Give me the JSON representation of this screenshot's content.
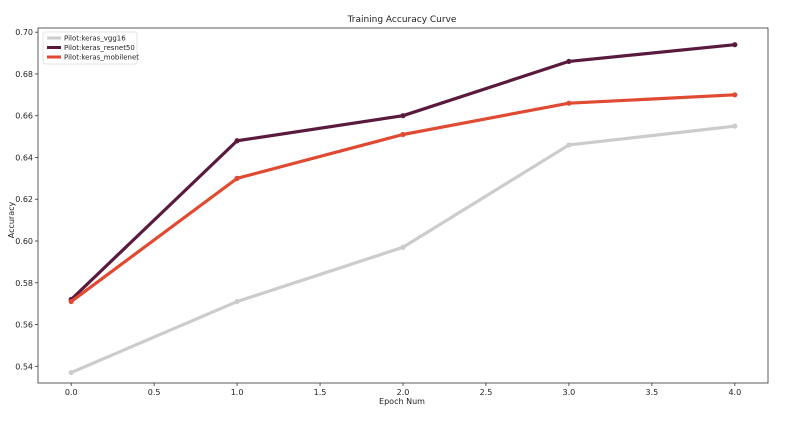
{
  "chart_data": {
    "type": "line",
    "title": "Training Accuracy Curve",
    "xlabel": "Epoch Num",
    "ylabel": "Accuracy",
    "x": [
      0,
      1,
      2,
      3,
      4
    ],
    "xlim": [
      -0.2,
      4.2
    ],
    "ylim": [
      0.532,
      0.702
    ],
    "xticks": [
      "0.0",
      "0.5",
      "1.0",
      "1.5",
      "2.0",
      "2.5",
      "3.0",
      "3.5",
      "4.0"
    ],
    "yticks": [
      "0.54",
      "0.56",
      "0.58",
      "0.60",
      "0.62",
      "0.64",
      "0.66",
      "0.68",
      "0.70"
    ],
    "grid": false,
    "legend_position": "top-left",
    "series": [
      {
        "name": "Pilot:keras_vgg16",
        "color": "#cccccc",
        "values": [
          0.537,
          0.571,
          0.597,
          0.646,
          0.655
        ]
      },
      {
        "name": "Pilot:keras_resnet50",
        "color": "#5a1a3d",
        "values": [
          0.572,
          0.648,
          0.66,
          0.686,
          0.694
        ]
      },
      {
        "name": "Pilot:keras_mobilenet",
        "color": "#e04a32",
        "values": [
          0.571,
          0.63,
          0.651,
          0.666,
          0.67
        ]
      }
    ]
  }
}
